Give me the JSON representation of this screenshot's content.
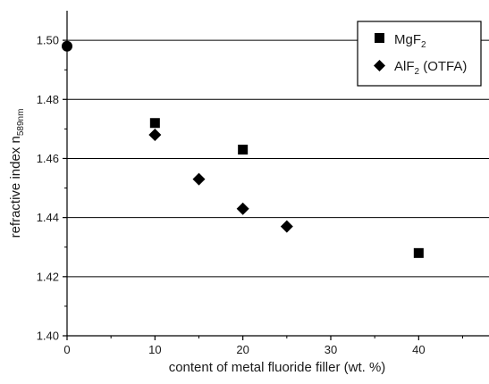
{
  "chart_data": {
    "type": "scatter",
    "xlabel": "content of metal fluoride filler (wt. %)",
    "ylabel": {
      "main": "refractive index  n",
      "sub": "589nm"
    },
    "xlim": [
      0,
      48
    ],
    "ylim": [
      1.4,
      1.51
    ],
    "x_ticks": [
      0,
      10,
      20,
      30,
      40
    ],
    "x_tick_labels": [
      "0",
      "10",
      "20",
      "30",
      "40"
    ],
    "y_ticks": [
      1.4,
      1.42,
      1.44,
      1.46,
      1.48,
      1.5
    ],
    "y_tick_labels": [
      "1.40",
      "1.42",
      "1.44",
      "1.46",
      "1.48",
      "1.50"
    ],
    "grid": "horizontal",
    "legend_position": "top-right",
    "reference_point": {
      "x": 0,
      "y": 1.498,
      "marker": "circle"
    },
    "series": [
      {
        "name": {
          "main": "MgF",
          "sub": "2",
          "suffix": ""
        },
        "marker": "square",
        "x": [
          10,
          20,
          40
        ],
        "y": [
          1.472,
          1.463,
          1.428
        ]
      },
      {
        "name": {
          "main": "AlF",
          "sub": "2",
          "suffix": " (OTFA)"
        },
        "marker": "diamond",
        "x": [
          10,
          15,
          20,
          25
        ],
        "y": [
          1.468,
          1.453,
          1.443,
          1.437
        ]
      }
    ],
    "colors": {
      "marker": "#000000",
      "axis": "#000000",
      "grid": "#000000"
    }
  }
}
